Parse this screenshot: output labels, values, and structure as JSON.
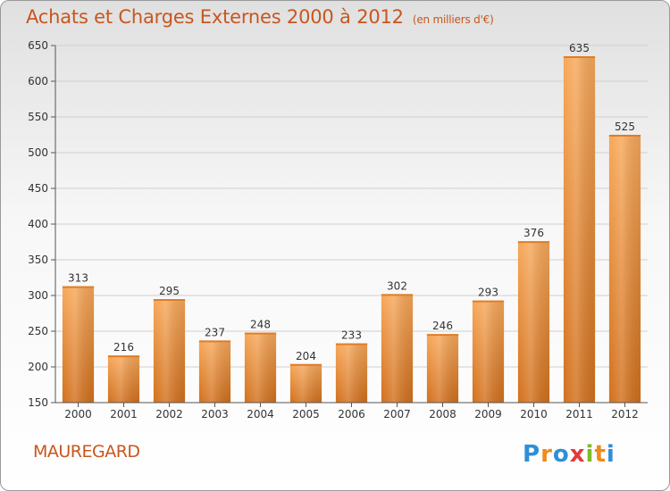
{
  "header": {
    "title": "Achats et Charges Externes 2000 à 2012",
    "unit": "(en milliers d'€)"
  },
  "footer": {
    "town": "MAUREGARD",
    "brand_letters": [
      "P",
      "r",
      "o",
      "x",
      "i",
      "t",
      "i"
    ]
  },
  "colors": {
    "accent": "#c8561e",
    "bar_light": "#f5a04c",
    "bar_dark": "#d8741e"
  },
  "chart_data": {
    "type": "bar",
    "title": "Achats et Charges Externes 2000 à 2012",
    "subtitle": "(en milliers d'€)",
    "xlabel": "",
    "ylabel": "",
    "categories": [
      "2000",
      "2001",
      "2002",
      "2003",
      "2004",
      "2005",
      "2006",
      "2007",
      "2008",
      "2009",
      "2010",
      "2011",
      "2012"
    ],
    "values": [
      313,
      216,
      295,
      237,
      248,
      204,
      233,
      302,
      246,
      293,
      376,
      635,
      525
    ],
    "ylim": [
      150,
      650
    ],
    "yticks": [
      150,
      200,
      250,
      300,
      350,
      400,
      450,
      500,
      550,
      600,
      650
    ],
    "grid": true,
    "legend": "none"
  }
}
